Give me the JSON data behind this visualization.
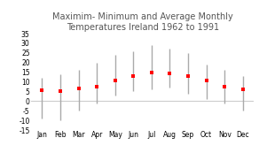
{
  "months": [
    "Jan",
    "Feb",
    "Mar",
    "Apr",
    "May",
    "Jun",
    "Jul",
    "Aug",
    "Sep",
    "Oct",
    "Nov",
    "Dec"
  ],
  "avg": [
    5.5,
    5.0,
    6.5,
    7.5,
    10.5,
    13.0,
    15.0,
    14.5,
    13.0,
    10.5,
    7.5,
    6.0
  ],
  "high": [
    12.0,
    14.0,
    16.0,
    20.0,
    24.0,
    26.0,
    29.0,
    27.0,
    25.0,
    19.0,
    16.0,
    13.0
  ],
  "low": [
    -9.0,
    -10.0,
    -5.0,
    -1.0,
    3.0,
    5.0,
    6.0,
    7.0,
    4.0,
    1.0,
    -1.0,
    -5.0
  ],
  "title_line1": "Maximim- Minimum and Average Monthly",
  "title_line2": "Temperatures Ireland 1962 to 1991",
  "ylim": [
    -15,
    35
  ],
  "yticks": [
    -15,
    -10,
    -5,
    0,
    5,
    10,
    15,
    20,
    25,
    30,
    35
  ],
  "bar_color": "#aaaaaa",
  "marker_color": "#ff0000",
  "bg_color": "#ffffff",
  "zero_line_color": "#cccccc",
  "title_fontsize": 7.0,
  "tick_fontsize": 5.5
}
